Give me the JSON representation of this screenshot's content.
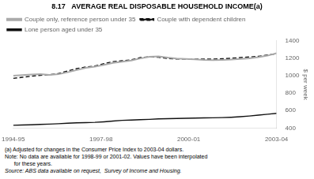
{
  "chart_data": {
    "type": "line",
    "title": "8.17   AVERAGE REAL DISPOSABLE HOUSEHOLD INCOME(a)",
    "ylabel": "$ per week",
    "x": [
      0,
      0.3103448275862069,
      0.6206896551724138,
      0.9310344827586207,
      1.2413793103448276,
      1.5517241379310345,
      1.8620689655172413,
      2.1724137931034484,
      2.4827586206896552,
      2.793103448275862,
      3.103448275862069,
      3.413793103448276,
      3.7241379310344827,
      4.0344827586206895,
      4.344827586206897,
      4.655172413793103,
      4.9655172413793105,
      5.275862068965517,
      5.586206896551724,
      5.896551724137931,
      6.206896551724138,
      6.517241379310345,
      6.827586206896552,
      7.137931034482759,
      7.448275862068965,
      7.758620689655172,
      8.068965517241379,
      8.379310344827585,
      8.689655172413794,
      9
    ],
    "series": [
      {
        "name": "Couple only, reference person under 35",
        "color": "#aaaaaa",
        "line_style": "solid",
        "values": [
          1000,
          1008,
          1015,
          1018,
          1010,
          1018,
          1040,
          1065,
          1090,
          1105,
          1125,
          1148,
          1160,
          1175,
          1198,
          1218,
          1222,
          1208,
          1198,
          1192,
          1188,
          1182,
          1180,
          1182,
          1185,
          1192,
          1200,
          1212,
          1230,
          1258
        ]
      },
      {
        "name": "Couple with dependent children",
        "color": "#111111",
        "line_style": "dashed",
        "values": [
          970,
          982,
          995,
          1005,
          1012,
          1025,
          1055,
          1082,
          1100,
          1112,
          1138,
          1162,
          1172,
          1182,
          1208,
          1218,
          1212,
          1198,
          1192,
          1192,
          1190,
          1190,
          1190,
          1195,
          1200,
          1208,
          1215,
          1222,
          1238,
          1252
        ]
      },
      {
        "name": "Lone person aged under 35",
        "color": "#111111",
        "line_style": "solid",
        "values": [
          432,
          435,
          438,
          442,
          445,
          450,
          455,
          460,
          463,
          466,
          472,
          480,
          488,
          492,
          496,
          500,
          505,
          508,
          510,
          512,
          514,
          516,
          518,
          520,
          524,
          530,
          538,
          548,
          558,
          568
        ]
      }
    ],
    "xlim": [
      0,
      9
    ],
    "xticks": [
      {
        "value": 0,
        "label": "1994-95"
      },
      {
        "value": 3,
        "label": "1997-98"
      },
      {
        "value": 6,
        "label": "2000-01"
      },
      {
        "value": 9,
        "label": "2003-04"
      }
    ],
    "ylim": [
      400,
      1400
    ],
    "yticks": [
      400,
      600,
      800,
      1000,
      1200,
      1400
    ],
    "grid": false,
    "legend": "top",
    "annotations": [
      "(a) Adjusted for changes in the Consumer Price Index to 2003-04 dollars.",
      "Note: No data are available for 1998-99 or 2001-02. Values have been interpolated",
      "      for these years.",
      "Source: ABS data available on request,  Survey of Income and Housing."
    ]
  }
}
